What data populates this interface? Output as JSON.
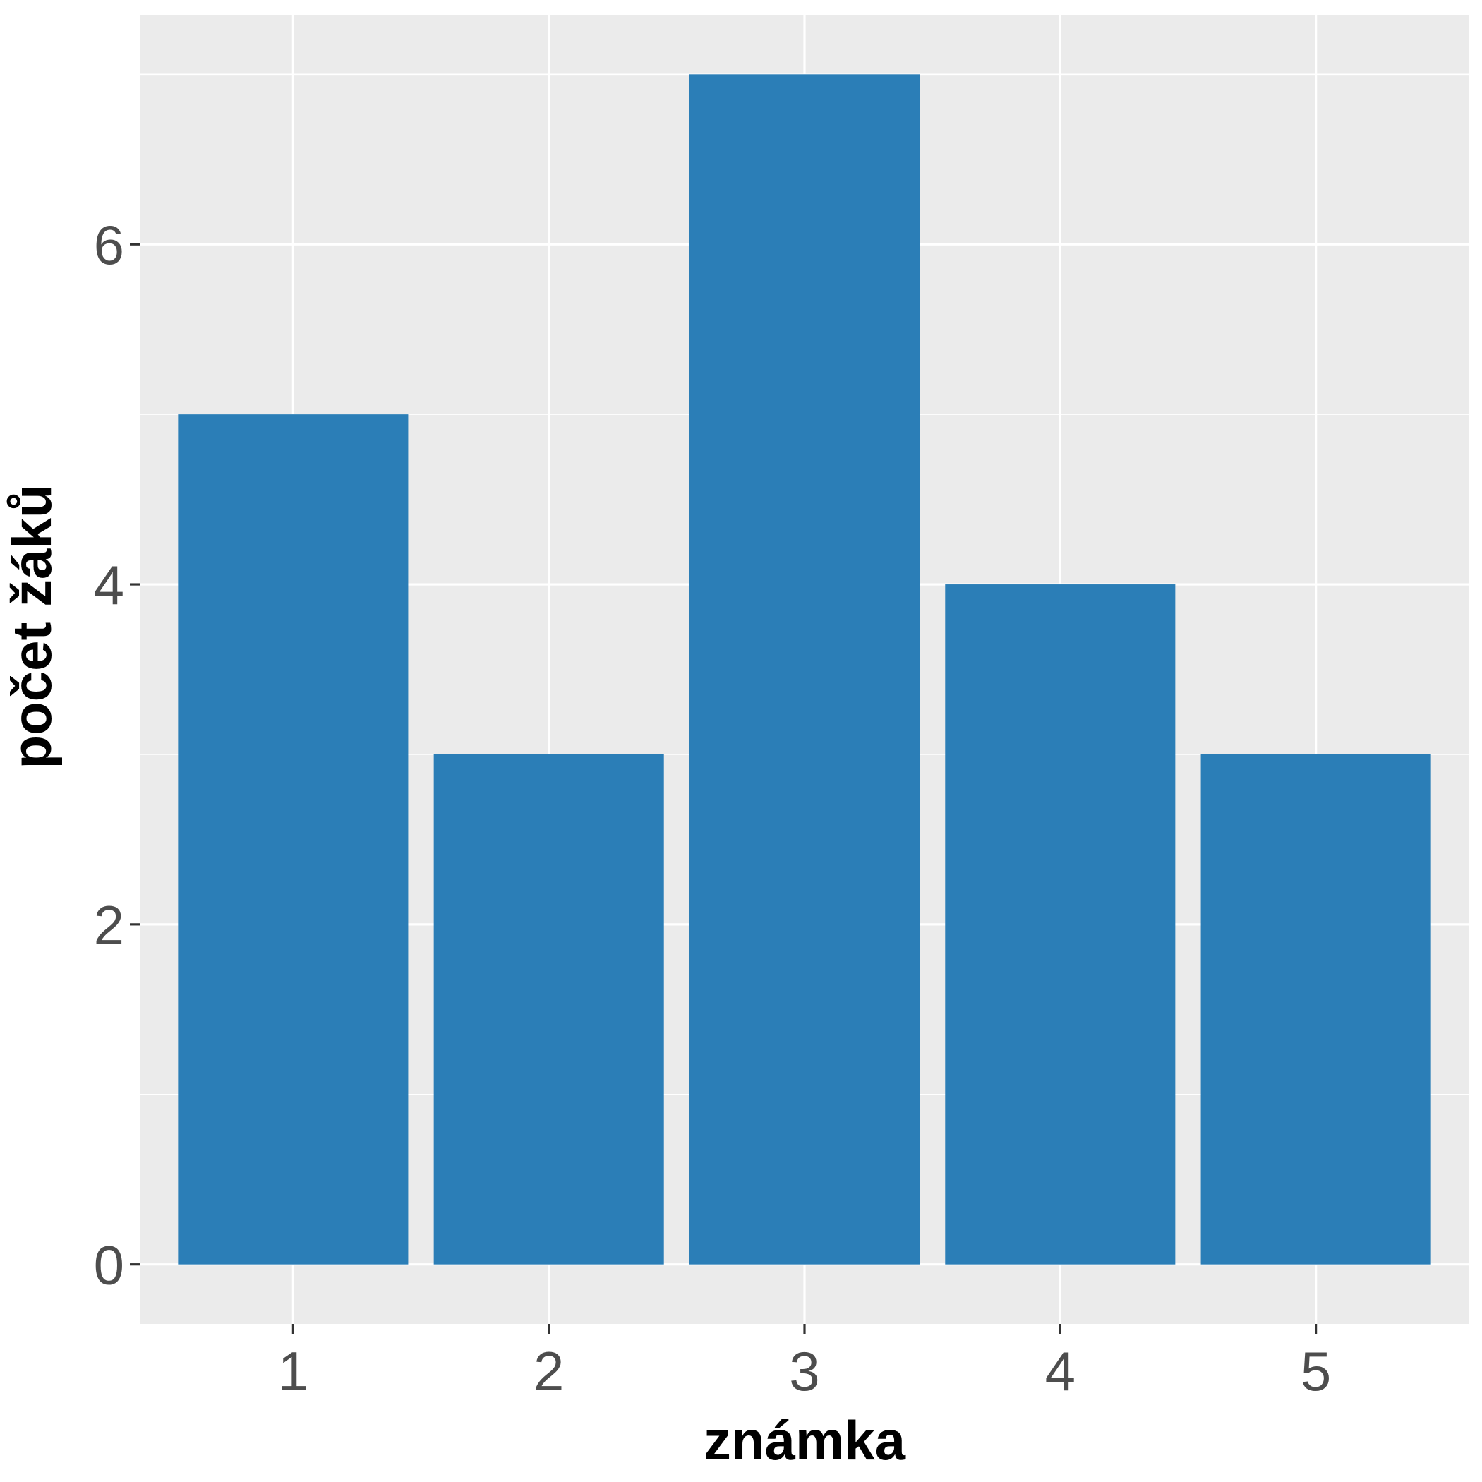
{
  "chart_data": {
    "type": "bar",
    "categories": [
      "1",
      "2",
      "3",
      "4",
      "5"
    ],
    "values": [
      5,
      3,
      7,
      4,
      3
    ],
    "xlabel": "známka",
    "ylabel": "počet žáků",
    "ylim": [
      -0.35,
      7.35
    ],
    "yticks": [
      "0",
      "2",
      "4",
      "6"
    ],
    "y_tick_values": [
      0,
      2,
      4,
      6
    ],
    "grid": true,
    "colors": {
      "bar": "#2b7eb7",
      "panel": "#ebebeb",
      "grid": "#ffffff"
    }
  }
}
